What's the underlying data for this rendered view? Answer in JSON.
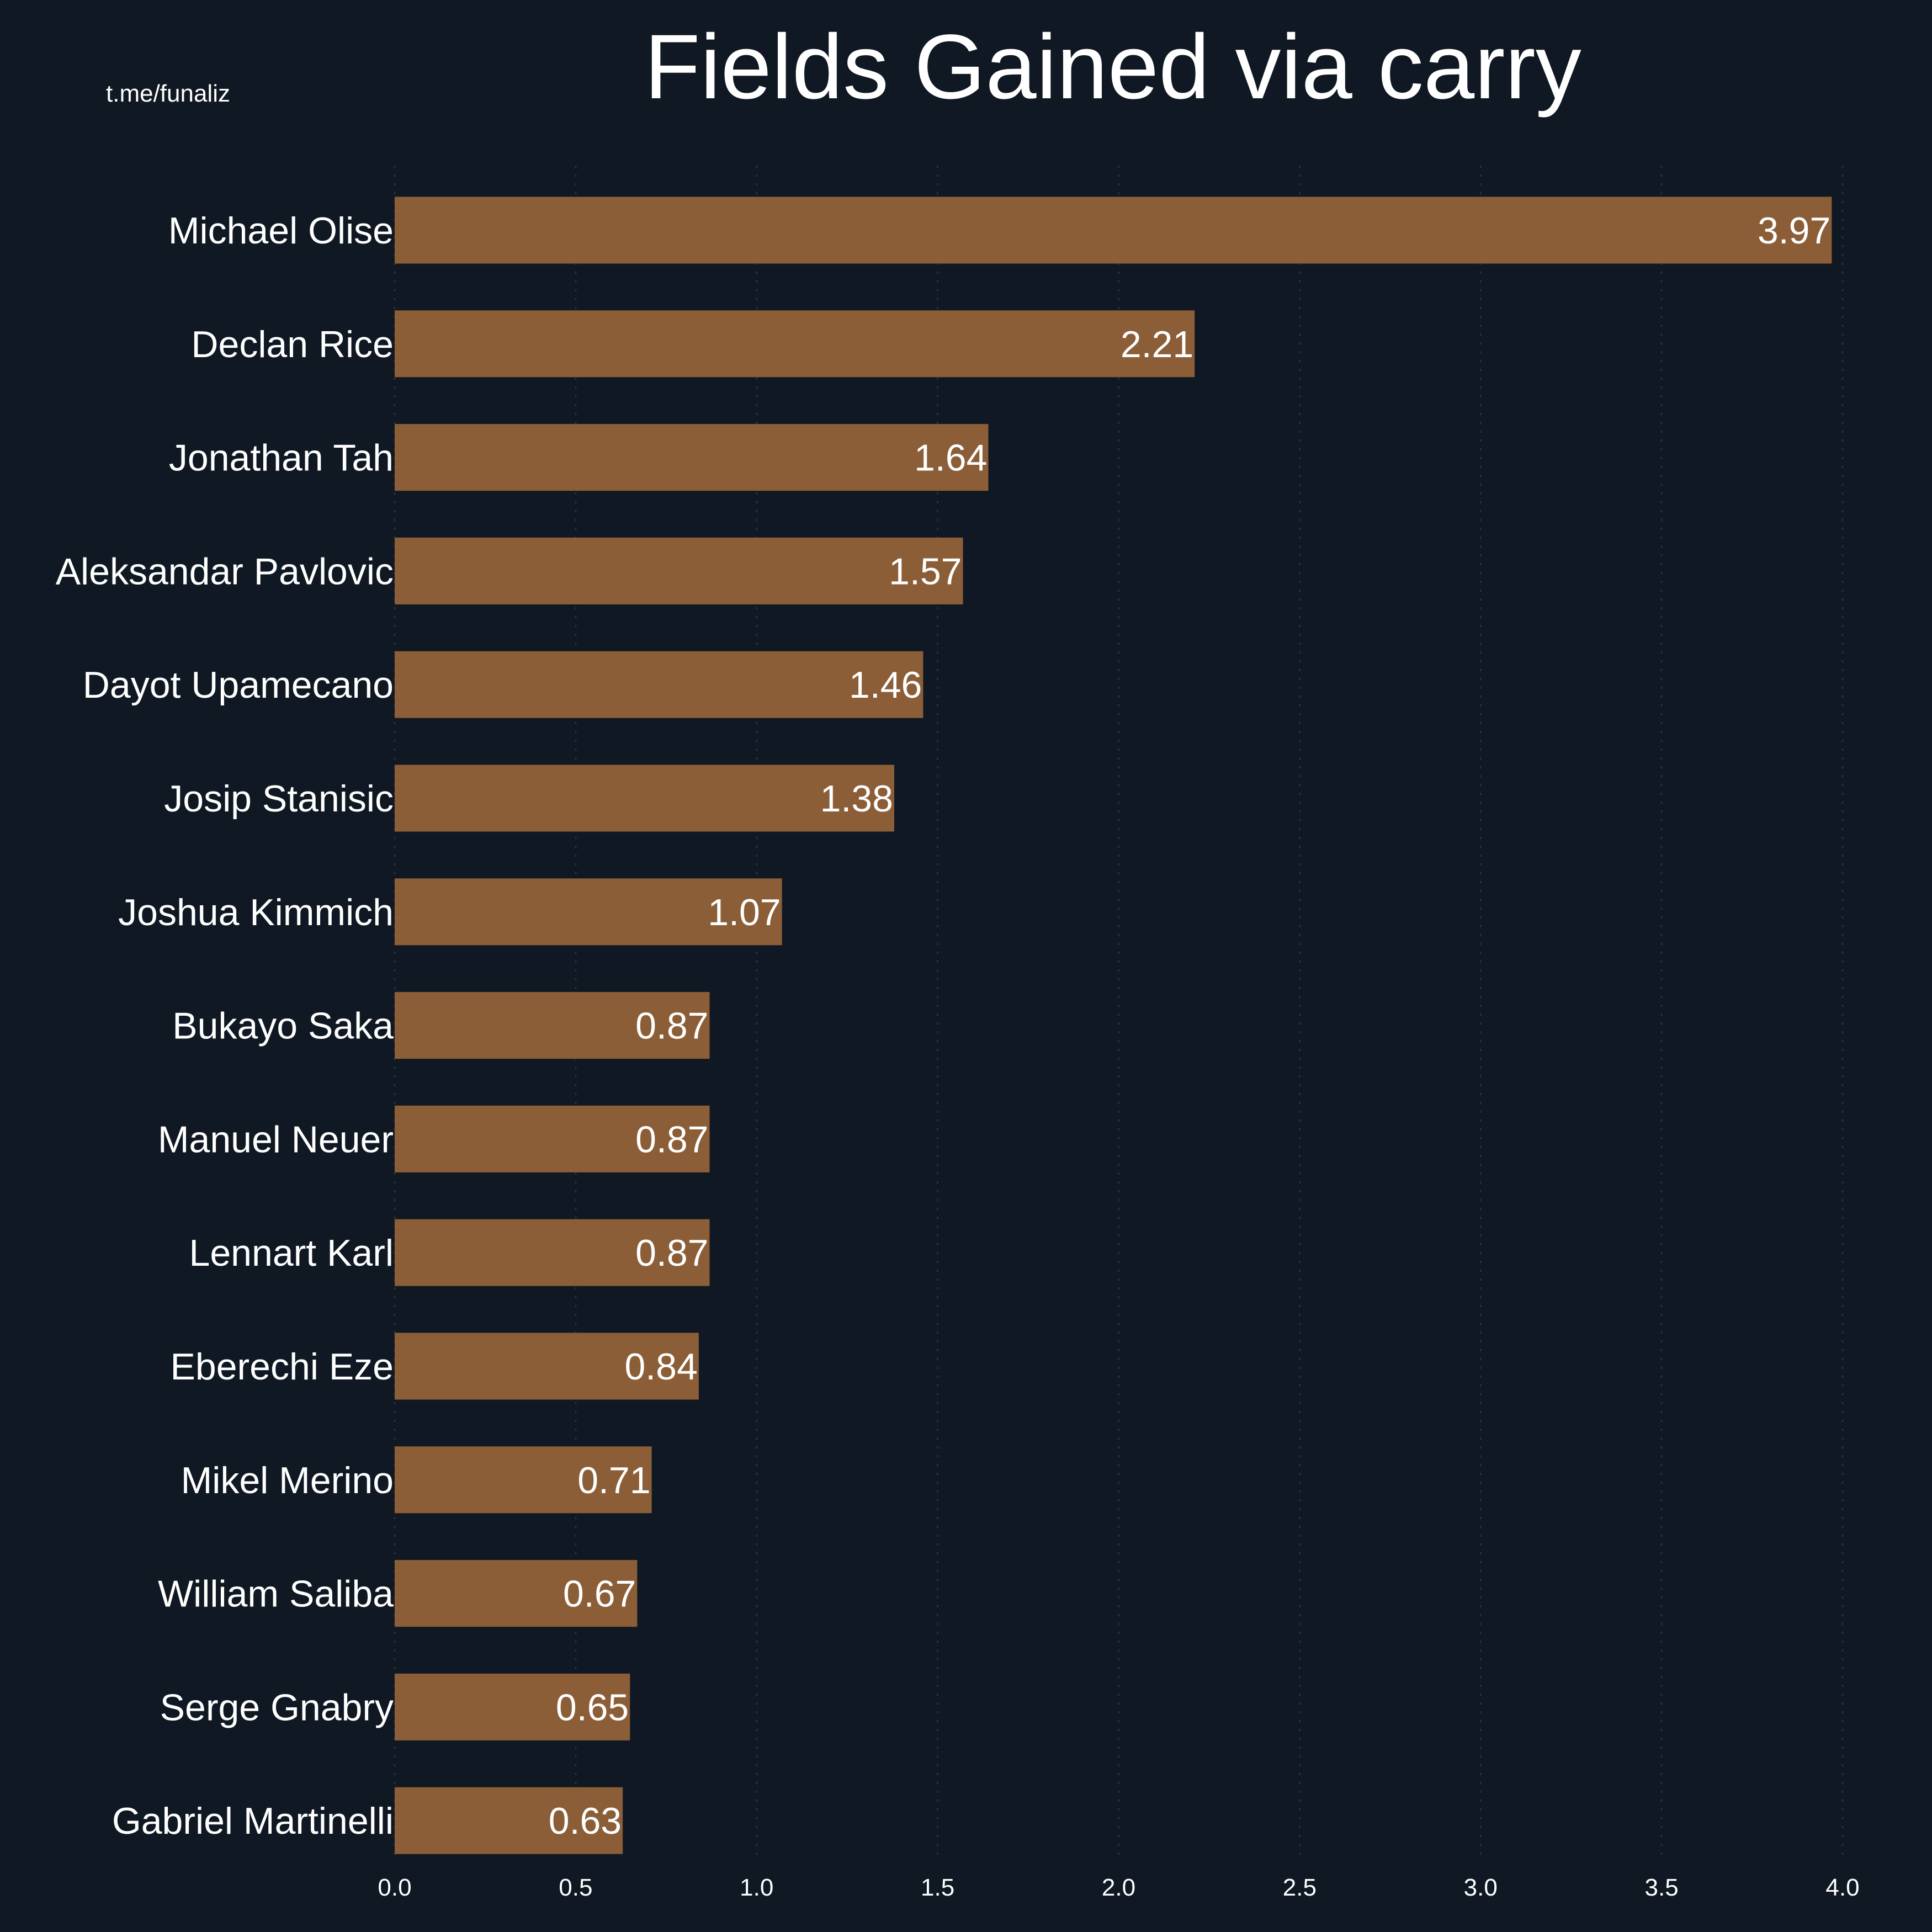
{
  "watermark": "t.me/funaliz",
  "colors": {
    "background": "#101923",
    "bar": "#8B5E38",
    "text": "#ffffff",
    "grid": "#26303c"
  },
  "chart_data": {
    "type": "bar",
    "orientation": "horizontal",
    "title": "Fields Gained via carry",
    "xlabel": "",
    "ylabel": "",
    "xlim": [
      0,
      4.0
    ],
    "xticks": [
      "0.0",
      "0.5",
      "1.0",
      "1.5",
      "2.0",
      "2.5",
      "3.0",
      "3.5",
      "4.0"
    ],
    "grid": "vertical dotted",
    "categories": [
      "Michael Olise",
      "Declan Rice",
      "Jonathan Tah",
      "Aleksandar Pavlovic",
      "Dayot Upamecano",
      "Josip Stanisic",
      "Joshua Kimmich",
      "Bukayo Saka",
      "Manuel Neuer",
      "Lennart Karl",
      "Eberechi Eze",
      "Mikel Merino",
      "William Saliba",
      "Serge Gnabry",
      "Gabriel Martinelli"
    ],
    "values": [
      3.97,
      2.21,
      1.64,
      1.57,
      1.46,
      1.38,
      1.07,
      0.87,
      0.87,
      0.87,
      0.84,
      0.71,
      0.67,
      0.65,
      0.63
    ],
    "value_labels": [
      "3.97",
      "2.21",
      "1.64",
      "1.57",
      "1.46",
      "1.38",
      "1.07",
      "0.87",
      "0.87",
      "0.87",
      "0.84",
      "0.71",
      "0.67",
      "0.65",
      "0.63"
    ]
  }
}
